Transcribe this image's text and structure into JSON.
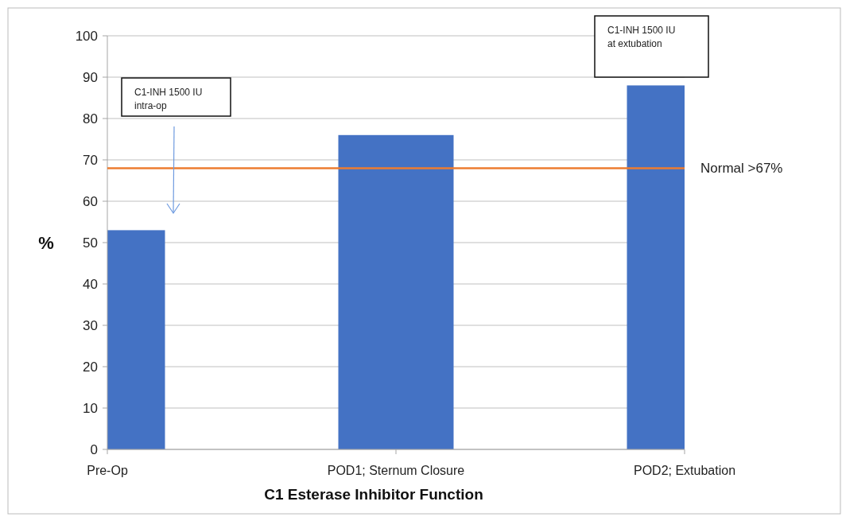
{
  "chart_data": {
    "type": "bar",
    "xlabel": "C1 Esterase Inhibitor Function",
    "ylabel": "%",
    "categories": [
      "Pre-Op",
      "POD1; Sternum Closure",
      "POD2; Extubation"
    ],
    "values": [
      53,
      76,
      88
    ],
    "color": "#4472c4",
    "ylim": [
      0,
      100
    ],
    "yticks": [
      0,
      10,
      20,
      30,
      40,
      50,
      60,
      70,
      80,
      90,
      100
    ],
    "grid": "y",
    "ref_lines": [
      {
        "axis": "y",
        "value": 68,
        "label": "Normal >67%",
        "color": "#ed7d31"
      }
    ],
    "annotations": [
      "C1-INH 1500 IU intra-op",
      "C1-INH 1500 IU at extubation"
    ]
  }
}
